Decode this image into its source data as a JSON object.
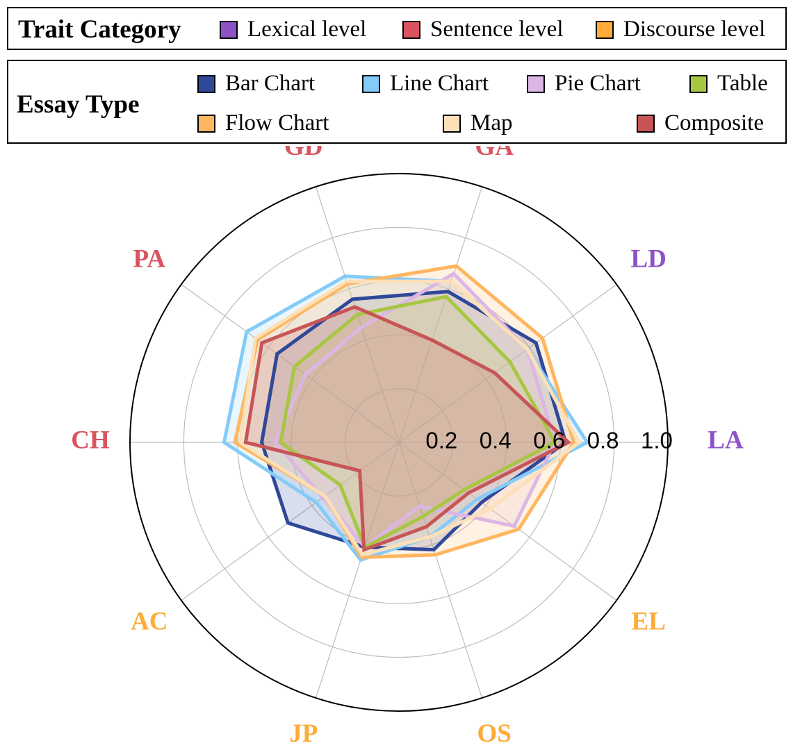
{
  "legend_trait": {
    "title": "Trait Category",
    "items": [
      {
        "label": "Lexical level",
        "color": "#8e52c7"
      },
      {
        "label": "Sentence level",
        "color": "#d9545f"
      },
      {
        "label": "Discourse level",
        "color": "#ffab38"
      }
    ]
  },
  "legend_essay": {
    "title": "Essay Type",
    "items": [
      {
        "label": "Bar Chart",
        "color": "#2f4899"
      },
      {
        "label": "Line Chart",
        "color": "#85cbf8"
      },
      {
        "label": "Pie Chart",
        "color": "#dcb6e4"
      },
      {
        "label": "Table",
        "color": "#a7c742"
      },
      {
        "label": "Flow Chart",
        "color": "#ffb660"
      },
      {
        "label": "Map",
        "color": "#fde0b8"
      },
      {
        "label": "Composite",
        "color": "#c85556"
      }
    ]
  },
  "chart_data": {
    "type": "radar",
    "axes": [
      "LA",
      "LD",
      "GA",
      "GD",
      "PA",
      "CH",
      "AC",
      "JP",
      "OS",
      "EL"
    ],
    "axis_categories": [
      "Lexical level",
      "Lexical level",
      "Sentence level",
      "Sentence level",
      "Sentence level",
      "Sentence level",
      "Discourse level",
      "Discourse level",
      "Discourse level",
      "Discourse level"
    ],
    "radial_ticks": [
      "0.2",
      "0.4",
      "0.6",
      "0.8",
      "1.0"
    ],
    "rlim": [
      0,
      1.0
    ],
    "series": [
      {
        "name": "Bar Chart",
        "color": "#2f4899",
        "values": [
          0.62,
          0.63,
          0.59,
          0.56,
          0.56,
          0.51,
          0.51,
          0.41,
          0.42,
          0.38
        ]
      },
      {
        "name": "Line Chart",
        "color": "#85cbf8",
        "values": [
          0.7,
          0.59,
          0.63,
          0.65,
          0.7,
          0.65,
          0.38,
          0.46,
          0.37,
          0.36
        ]
      },
      {
        "name": "Pie Chart",
        "color": "#dcb6e4",
        "values": [
          0.58,
          0.59,
          0.66,
          0.45,
          0.43,
          0.46,
          0.35,
          0.41,
          0.25,
          0.53
        ]
      },
      {
        "name": "Table",
        "color": "#a7c742",
        "values": [
          0.58,
          0.51,
          0.57,
          0.5,
          0.48,
          0.44,
          0.27,
          0.41,
          0.29,
          0.3
        ]
      },
      {
        "name": "Flow Chart",
        "color": "#ffb660",
        "values": [
          0.65,
          0.66,
          0.69,
          0.62,
          0.65,
          0.61,
          0.34,
          0.45,
          0.44,
          0.55
        ]
      },
      {
        "name": "Map",
        "color": "#fde0b8",
        "values": [
          0.67,
          0.59,
          0.63,
          0.63,
          0.66,
          0.59,
          0.34,
          0.44,
          0.37,
          0.42
        ]
      },
      {
        "name": "Composite",
        "color": "#c85556",
        "values": [
          0.63,
          0.44,
          0.4,
          0.53,
          0.63,
          0.57,
          0.18,
          0.42,
          0.33,
          0.32
        ]
      }
    ]
  },
  "axis_colors": {
    "Lexical level": "#8e52c7",
    "Sentence level": "#d9545f",
    "Discourse level": "#ffab38"
  }
}
